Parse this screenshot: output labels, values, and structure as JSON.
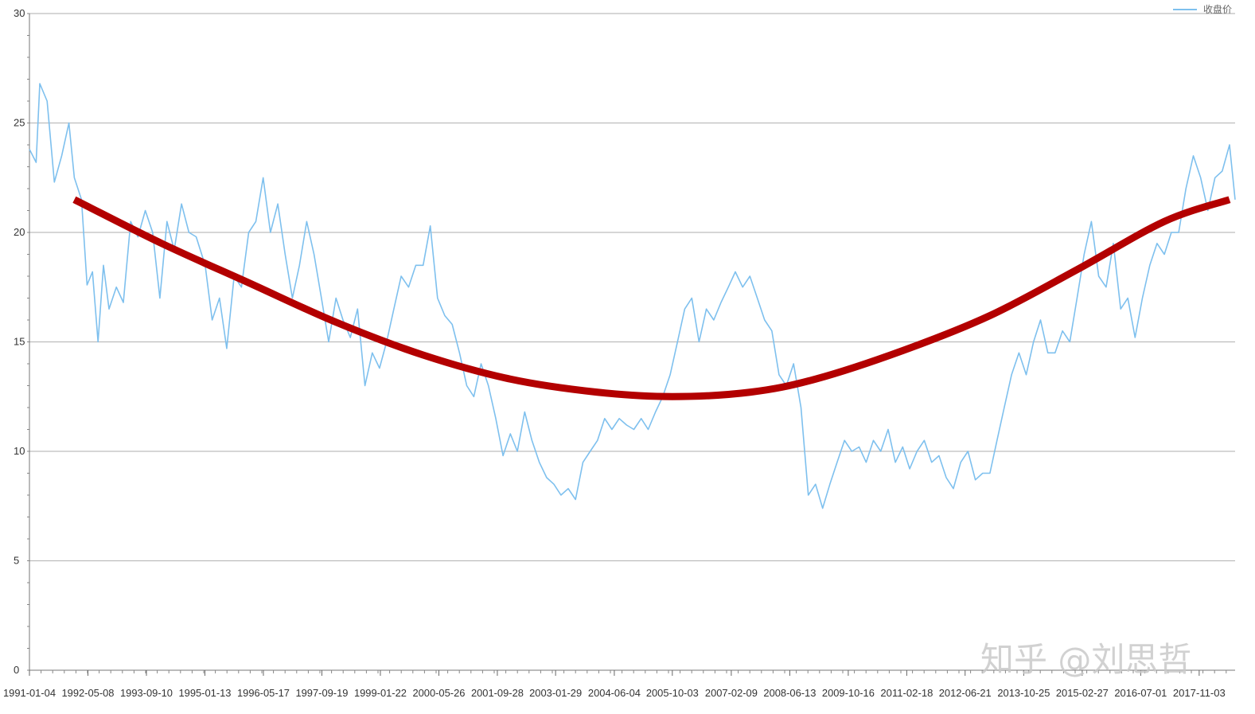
{
  "chart_data": {
    "type": "line",
    "ylim": [
      0,
      30
    ],
    "yticks": [
      "0",
      "5",
      "10",
      "15",
      "20",
      "25",
      "30"
    ],
    "x_tick_labels": [
      "1991-01-04",
      "1992-05-08",
      "1993-09-10",
      "1995-01-13",
      "1996-05-17",
      "1997-09-19",
      "1999-01-22",
      "2000-05-26",
      "2001-09-28",
      "2003-01-29",
      "2004-06-04",
      "2005-10-03",
      "2007-02-09",
      "2008-06-13",
      "2009-10-16",
      "2011-02-18",
      "2012-06-21",
      "2013-10-25",
      "2015-02-27",
      "2016-07-01",
      "2017-11-03"
    ],
    "x_start": "1991-01-04",
    "x_end": "2018-08-31",
    "grid": true,
    "legend": "top-right",
    "series": [
      {
        "name": "收盘价",
        "color": "#7ec0ee",
        "points": [
          [
            "1991-01-04",
            23.8
          ],
          [
            "1991-03-01",
            23.2
          ],
          [
            "1991-04-01",
            26.8
          ],
          [
            "1991-06-01",
            26.0
          ],
          [
            "1991-08-01",
            22.3
          ],
          [
            "1991-10-01",
            23.5
          ],
          [
            "1991-12-01",
            25.0
          ],
          [
            "1992-01-15",
            22.5
          ],
          [
            "1992-03-15",
            21.5
          ],
          [
            "1992-05-01",
            17.6
          ],
          [
            "1992-06-15",
            18.2
          ],
          [
            "1992-08-01",
            15.0
          ],
          [
            "1992-09-15",
            18.5
          ],
          [
            "1992-11-01",
            16.5
          ],
          [
            "1993-01-01",
            17.5
          ],
          [
            "1993-03-01",
            16.8
          ],
          [
            "1993-05-01",
            20.5
          ],
          [
            "1993-07-01",
            19.8
          ],
          [
            "1993-09-01",
            21.0
          ],
          [
            "1993-11-01",
            20.0
          ],
          [
            "1994-01-01",
            17.0
          ],
          [
            "1994-03-01",
            20.5
          ],
          [
            "1994-05-01",
            19.2
          ],
          [
            "1994-07-01",
            21.3
          ],
          [
            "1994-09-01",
            20.0
          ],
          [
            "1994-11-01",
            19.8
          ],
          [
            "1995-01-15",
            18.5
          ],
          [
            "1995-03-15",
            16.0
          ],
          [
            "1995-05-15",
            17.0
          ],
          [
            "1995-07-15",
            14.7
          ],
          [
            "1995-09-15",
            18.0
          ],
          [
            "1995-11-15",
            17.5
          ],
          [
            "1996-01-15",
            20.0
          ],
          [
            "1996-03-15",
            20.5
          ],
          [
            "1996-05-15",
            22.5
          ],
          [
            "1996-07-15",
            20.0
          ],
          [
            "1996-09-15",
            21.3
          ],
          [
            "1996-11-15",
            19.0
          ],
          [
            "1997-01-15",
            17.0
          ],
          [
            "1997-03-15",
            18.5
          ],
          [
            "1997-05-15",
            20.5
          ],
          [
            "1997-07-15",
            19.0
          ],
          [
            "1997-09-15",
            17.0
          ],
          [
            "1997-11-15",
            15.0
          ],
          [
            "1998-01-15",
            17.0
          ],
          [
            "1998-03-15",
            16.0
          ],
          [
            "1998-05-15",
            15.2
          ],
          [
            "1998-07-15",
            16.5
          ],
          [
            "1998-09-15",
            13.0
          ],
          [
            "1998-11-15",
            14.5
          ],
          [
            "1999-01-15",
            13.8
          ],
          [
            "1999-03-15",
            15.0
          ],
          [
            "1999-05-15",
            16.5
          ],
          [
            "1999-07-15",
            18.0
          ],
          [
            "1999-09-15",
            17.5
          ],
          [
            "1999-11-15",
            18.5
          ],
          [
            "2000-01-15",
            18.5
          ],
          [
            "2000-03-15",
            20.3
          ],
          [
            "2000-05-15",
            17.0
          ],
          [
            "2000-07-15",
            16.2
          ],
          [
            "2000-09-15",
            15.8
          ],
          [
            "2000-11-15",
            14.5
          ],
          [
            "2001-01-15",
            13.0
          ],
          [
            "2001-03-15",
            12.5
          ],
          [
            "2001-05-15",
            14.0
          ],
          [
            "2001-07-15",
            13.0
          ],
          [
            "2001-09-15",
            11.5
          ],
          [
            "2001-11-15",
            9.8
          ],
          [
            "2002-01-15",
            10.8
          ],
          [
            "2002-03-15",
            10.0
          ],
          [
            "2002-05-15",
            11.8
          ],
          [
            "2002-07-15",
            10.5
          ],
          [
            "2002-09-15",
            9.5
          ],
          [
            "2002-11-15",
            8.8
          ],
          [
            "2003-01-15",
            8.5
          ],
          [
            "2003-03-15",
            8.0
          ],
          [
            "2003-05-15",
            8.3
          ],
          [
            "2003-07-15",
            7.8
          ],
          [
            "2003-09-15",
            9.5
          ],
          [
            "2003-11-15",
            10.0
          ],
          [
            "2004-01-15",
            10.5
          ],
          [
            "2004-03-15",
            11.5
          ],
          [
            "2004-05-15",
            11.0
          ],
          [
            "2004-07-15",
            11.5
          ],
          [
            "2004-09-15",
            11.2
          ],
          [
            "2004-11-15",
            11.0
          ],
          [
            "2005-01-15",
            11.5
          ],
          [
            "2005-03-15",
            11.0
          ],
          [
            "2005-05-15",
            11.8
          ],
          [
            "2005-07-15",
            12.5
          ],
          [
            "2005-09-15",
            13.5
          ],
          [
            "2005-11-15",
            15.0
          ],
          [
            "2006-01-15",
            16.5
          ],
          [
            "2006-03-15",
            17.0
          ],
          [
            "2006-05-15",
            15.0
          ],
          [
            "2006-07-15",
            16.5
          ],
          [
            "2006-09-15",
            16.0
          ],
          [
            "2006-11-15",
            16.8
          ],
          [
            "2007-01-15",
            17.5
          ],
          [
            "2007-03-15",
            18.2
          ],
          [
            "2007-05-15",
            17.5
          ],
          [
            "2007-07-15",
            18.0
          ],
          [
            "2007-09-15",
            17.0
          ],
          [
            "2007-11-15",
            16.0
          ],
          [
            "2008-01-15",
            15.5
          ],
          [
            "2008-03-15",
            13.5
          ],
          [
            "2008-05-15",
            13.0
          ],
          [
            "2008-07-15",
            14.0
          ],
          [
            "2008-09-15",
            12.0
          ],
          [
            "2008-11-15",
            8.0
          ],
          [
            "2009-01-15",
            8.5
          ],
          [
            "2009-03-15",
            7.4
          ],
          [
            "2009-05-15",
            8.5
          ],
          [
            "2009-07-15",
            9.5
          ],
          [
            "2009-09-15",
            10.5
          ],
          [
            "2009-11-15",
            10.0
          ],
          [
            "2010-01-15",
            10.2
          ],
          [
            "2010-03-15",
            9.5
          ],
          [
            "2010-05-15",
            10.5
          ],
          [
            "2010-07-15",
            10.0
          ],
          [
            "2010-09-15",
            11.0
          ],
          [
            "2010-11-15",
            9.5
          ],
          [
            "2011-01-15",
            10.2
          ],
          [
            "2011-03-15",
            9.2
          ],
          [
            "2011-05-15",
            10.0
          ],
          [
            "2011-07-15",
            10.5
          ],
          [
            "2011-09-15",
            9.5
          ],
          [
            "2011-11-15",
            9.8
          ],
          [
            "2012-01-15",
            8.8
          ],
          [
            "2012-03-15",
            8.3
          ],
          [
            "2012-05-15",
            9.5
          ],
          [
            "2012-07-15",
            10.0
          ],
          [
            "2012-09-15",
            8.7
          ],
          [
            "2012-11-15",
            9.0
          ],
          [
            "2013-01-15",
            9.0
          ],
          [
            "2013-03-15",
            10.5
          ],
          [
            "2013-05-15",
            12.0
          ],
          [
            "2013-07-15",
            13.5
          ],
          [
            "2013-09-15",
            14.5
          ],
          [
            "2013-11-15",
            13.5
          ],
          [
            "2014-01-15",
            15.0
          ],
          [
            "2014-03-15",
            16.0
          ],
          [
            "2014-05-15",
            14.5
          ],
          [
            "2014-07-15",
            14.5
          ],
          [
            "2014-09-15",
            15.5
          ],
          [
            "2014-11-15",
            15.0
          ],
          [
            "2015-01-15",
            17.0
          ],
          [
            "2015-03-15",
            19.0
          ],
          [
            "2015-05-15",
            20.5
          ],
          [
            "2015-07-15",
            18.0
          ],
          [
            "2015-09-15",
            17.5
          ],
          [
            "2015-11-15",
            19.5
          ],
          [
            "2016-01-15",
            16.5
          ],
          [
            "2016-03-15",
            17.0
          ],
          [
            "2016-05-15",
            15.2
          ],
          [
            "2016-07-15",
            17.0
          ],
          [
            "2016-09-15",
            18.5
          ],
          [
            "2016-11-15",
            19.5
          ],
          [
            "2017-01-15",
            19.0
          ],
          [
            "2017-03-15",
            20.0
          ],
          [
            "2017-05-15",
            20.0
          ],
          [
            "2017-07-15",
            22.0
          ],
          [
            "2017-09-15",
            23.5
          ],
          [
            "2017-11-15",
            22.5
          ],
          [
            "2018-01-15",
            21.0
          ],
          [
            "2018-03-15",
            22.5
          ],
          [
            "2018-05-15",
            22.8
          ],
          [
            "2018-07-15",
            24.0
          ],
          [
            "2018-08-31",
            21.5
          ]
        ]
      },
      {
        "color": "#b30000",
        "points": [
          [
            "1992-01-15",
            21.5
          ],
          [
            "1994-01-15",
            19.5
          ],
          [
            "1996-01-15",
            17.7
          ],
          [
            "1998-01-15",
            15.9
          ],
          [
            "2000-01-15",
            14.4
          ],
          [
            "2002-01-15",
            13.3
          ],
          [
            "2004-01-15",
            12.7
          ],
          [
            "2005-10-03",
            12.5
          ],
          [
            "2007-07-15",
            12.7
          ],
          [
            "2009-01-15",
            13.3
          ],
          [
            "2011-01-15",
            14.6
          ],
          [
            "2013-01-15",
            16.2
          ],
          [
            "2015-01-15",
            18.3
          ],
          [
            "2017-01-15",
            20.5
          ],
          [
            "2018-07-15",
            21.5
          ]
        ]
      }
    ]
  },
  "watermark": "知乎 @刘思哲"
}
